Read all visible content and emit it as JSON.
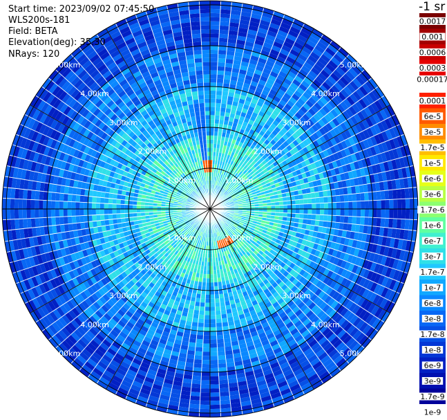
{
  "header": {
    "start_time": "Start time: 2023/09/02 07:45:50",
    "instrument": "WLS200s-181",
    "field": "Field: BETA",
    "elevation": "Elevation(deg): 35.30",
    "nrays": "NRays: 120"
  },
  "colorbar": {
    "unit_title": "-1 sr",
    "upper_labels": [
      "0.0017",
      "0.001",
      "0.0006",
      "0.0003",
      "0.00017"
    ],
    "upper_colors": [
      "#7a0000",
      "#a30000",
      "#c80000",
      "#e60000"
    ],
    "lower_labels": [
      "0.0001",
      "6e-5",
      "3e-5",
      "1.7e-5",
      "1e-5",
      "6e-6",
      "3e-6",
      "1.7e-6",
      "1e-6",
      "6e-7",
      "3e-7",
      "1.7e-7",
      "1e-7",
      "6e-8",
      "3e-8",
      "1.7e-8",
      "1e-8",
      "6e-9",
      "3e-9",
      "1.7e-9",
      "1e-9"
    ],
    "lower_colors": [
      "#ff2000",
      "#ff5a00",
      "#ff8c00",
      "#ffbe00",
      "#ffe800",
      "#e6ff18",
      "#b8ff44",
      "#8cff70",
      "#60ffa0",
      "#40f0d0",
      "#30e0e8",
      "#20c8ff",
      "#10a8ff",
      "#0a88ff",
      "#0868f5",
      "#0650e6",
      "#0438d6",
      "#0220c4",
      "#0010b0",
      "#00009a"
    ]
  },
  "chart_data": {
    "type": "heatmap",
    "projection": "polar PPI",
    "field": "BETA",
    "nrays": 120,
    "range_rings_km": [
      1,
      2,
      3,
      4,
      5
    ],
    "range_ring_labels": [
      "1.00km",
      "2.00km",
      "3.00km",
      "4.00km",
      "5.00km"
    ],
    "azimuth_lines_deg": [
      0,
      30,
      60,
      90,
      120,
      150,
      180,
      210,
      240,
      270,
      300,
      330
    ],
    "max_range_km": 5.1,
    "scale": "log",
    "value_range": [
      1e-09,
      0.0017
    ],
    "typical_levels": [
      {
        "range_km": [
          0.0,
          0.6
        ],
        "value": 1.7e-07
      },
      {
        "range_km": [
          0.6,
          1.8
        ],
        "value": 3e-07
      },
      {
        "range_km": [
          1.8,
          3.0
        ],
        "value": 1e-07
      },
      {
        "range_km": [
          3.0,
          4.0
        ],
        "value": 3e-08
      },
      {
        "range_km": [
          4.0,
          5.1
        ],
        "value": 1e-08
      }
    ],
    "features": [
      {
        "azimuth_deg": [
          351,
          3
        ],
        "range_km": [
          0.9,
          1.2
        ],
        "value": 3e-05
      },
      {
        "azimuth_deg": [
          144,
          168
        ],
        "range_km": [
          0.8,
          0.95
        ],
        "value": 3e-05
      },
      {
        "azimuth_deg": [
          350,
          358
        ],
        "range_km": [
          1.2,
          2.6
        ],
        "value": 1.7e-08
      }
    ]
  }
}
